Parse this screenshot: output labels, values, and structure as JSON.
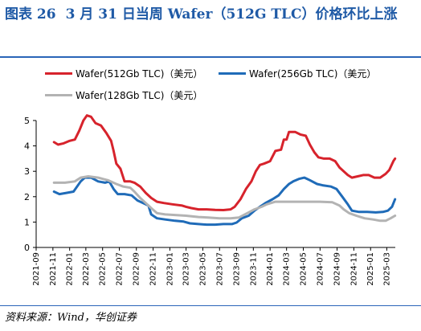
{
  "figure": {
    "label": "图表 26",
    "title": "3 月 31 日当周 Wafer（512G TLC）价格环比上涨",
    "source": "资料来源：Wind，华创证券"
  },
  "colors": {
    "title": "#1f5aa6",
    "rule": "#2a65b8"
  },
  "chart_data": {
    "type": "line",
    "title": "",
    "xlabel": "",
    "ylabel": "",
    "ylim": [
      0,
      5
    ],
    "yticks": [
      0,
      1,
      2,
      3,
      4,
      5
    ],
    "xlim": [
      "2021-09",
      "2025-04"
    ],
    "xticks": [
      "2021-09",
      "2021-11",
      "2022-01",
      "2022-03",
      "2022-05",
      "2022-07",
      "2022-09",
      "2022-11",
      "2023-01",
      "2023-03",
      "2023-05",
      "2023-07",
      "2023-09",
      "2023-11",
      "2024-01",
      "2024-03",
      "2024-05",
      "2024-07",
      "2024-09",
      "2024-11",
      "2025-01",
      "2025-03"
    ],
    "grid": false,
    "legend_position": "top",
    "series": [
      {
        "name": "Wafer(512Gb TLC)（美元）",
        "color": "#d7232c",
        "points": [
          [
            "2021-11-05",
            4.15
          ],
          [
            "2021-11-20",
            4.05
          ],
          [
            "2021-12-10",
            4.1
          ],
          [
            "2022-01-01",
            4.2
          ],
          [
            "2022-01-20",
            4.25
          ],
          [
            "2022-02-05",
            4.6
          ],
          [
            "2022-02-20",
            5.0
          ],
          [
            "2022-03-05",
            5.2
          ],
          [
            "2022-03-20",
            5.15
          ],
          [
            "2022-04-05",
            4.9
          ],
          [
            "2022-04-25",
            4.8
          ],
          [
            "2022-05-15",
            4.5
          ],
          [
            "2022-06-01",
            4.2
          ],
          [
            "2022-06-10",
            3.8
          ],
          [
            "2022-06-20",
            3.3
          ],
          [
            "2022-07-05",
            3.1
          ],
          [
            "2022-07-20",
            2.6
          ],
          [
            "2022-08-10",
            2.6
          ],
          [
            "2022-08-25",
            2.55
          ],
          [
            "2022-09-15",
            2.4
          ],
          [
            "2022-10-05",
            2.15
          ],
          [
            "2022-10-25",
            1.95
          ],
          [
            "2022-11-15",
            1.8
          ],
          [
            "2022-12-10",
            1.75
          ],
          [
            "2023-01-10",
            1.7
          ],
          [
            "2023-02-15",
            1.65
          ],
          [
            "2023-03-01",
            1.6
          ],
          [
            "2023-03-20",
            1.55
          ],
          [
            "2023-04-15",
            1.5
          ],
          [
            "2023-05-15",
            1.5
          ],
          [
            "2023-06-15",
            1.48
          ],
          [
            "2023-07-15",
            1.47
          ],
          [
            "2023-08-10",
            1.5
          ],
          [
            "2023-08-25",
            1.6
          ],
          [
            "2023-09-15",
            1.9
          ],
          [
            "2023-10-05",
            2.3
          ],
          [
            "2023-10-25",
            2.6
          ],
          [
            "2023-11-10",
            3.0
          ],
          [
            "2023-11-25",
            3.25
          ],
          [
            "2023-12-10",
            3.3
          ],
          [
            "2024-01-01",
            3.4
          ],
          [
            "2024-01-20",
            3.8
          ],
          [
            "2024-02-10",
            3.85
          ],
          [
            "2024-02-20",
            4.25
          ],
          [
            "2024-03-01",
            4.25
          ],
          [
            "2024-03-10",
            4.55
          ],
          [
            "2024-04-01",
            4.55
          ],
          [
            "2024-04-20",
            4.45
          ],
          [
            "2024-05-10",
            4.4
          ],
          [
            "2024-05-25",
            4.05
          ],
          [
            "2024-06-10",
            3.75
          ],
          [
            "2024-06-25",
            3.55
          ],
          [
            "2024-07-15",
            3.5
          ],
          [
            "2024-08-05",
            3.5
          ],
          [
            "2024-08-25",
            3.4
          ],
          [
            "2024-09-10",
            3.15
          ],
          [
            "2024-09-25",
            3.0
          ],
          [
            "2024-10-10",
            2.85
          ],
          [
            "2024-10-25",
            2.75
          ],
          [
            "2024-11-15",
            2.8
          ],
          [
            "2024-12-05",
            2.85
          ],
          [
            "2024-12-25",
            2.85
          ],
          [
            "2025-01-15",
            2.75
          ],
          [
            "2025-02-05",
            2.75
          ],
          [
            "2025-02-25",
            2.9
          ],
          [
            "2025-03-10",
            3.05
          ],
          [
            "2025-03-25",
            3.4
          ],
          [
            "2025-03-31",
            3.5
          ]
        ]
      },
      {
        "name": "Wafer(256Gb TLC)（美元）",
        "color": "#1f6bb8",
        "points": [
          [
            "2021-11-05",
            2.2
          ],
          [
            "2021-11-25",
            2.1
          ],
          [
            "2021-12-20",
            2.15
          ],
          [
            "2022-01-15",
            2.2
          ],
          [
            "2022-02-10",
            2.6
          ],
          [
            "2022-02-25",
            2.75
          ],
          [
            "2022-03-20",
            2.75
          ],
          [
            "2022-04-15",
            2.6
          ],
          [
            "2022-05-10",
            2.55
          ],
          [
            "2022-05-25",
            2.6
          ],
          [
            "2022-06-10",
            2.3
          ],
          [
            "2022-06-25",
            2.1
          ],
          [
            "2022-07-20",
            2.1
          ],
          [
            "2022-08-15",
            2.05
          ],
          [
            "2022-09-05",
            1.85
          ],
          [
            "2022-09-25",
            1.75
          ],
          [
            "2022-10-15",
            1.65
          ],
          [
            "2022-10-25",
            1.3
          ],
          [
            "2022-11-15",
            1.15
          ],
          [
            "2022-12-15",
            1.1
          ],
          [
            "2023-01-20",
            1.05
          ],
          [
            "2023-02-20",
            1.02
          ],
          [
            "2023-03-15",
            0.95
          ],
          [
            "2023-04-15",
            0.92
          ],
          [
            "2023-05-15",
            0.9
          ],
          [
            "2023-06-15",
            0.9
          ],
          [
            "2023-07-15",
            0.92
          ],
          [
            "2023-08-15",
            0.92
          ],
          [
            "2023-09-01",
            0.98
          ],
          [
            "2023-09-20",
            1.15
          ],
          [
            "2023-10-15",
            1.25
          ],
          [
            "2023-11-05",
            1.45
          ],
          [
            "2023-11-25",
            1.6
          ],
          [
            "2023-12-15",
            1.75
          ],
          [
            "2024-01-10",
            1.9
          ],
          [
            "2024-02-01",
            2.05
          ],
          [
            "2024-02-20",
            2.3
          ],
          [
            "2024-03-10",
            2.5
          ],
          [
            "2024-03-25",
            2.6
          ],
          [
            "2024-04-15",
            2.7
          ],
          [
            "2024-05-05",
            2.75
          ],
          [
            "2024-05-25",
            2.65
          ],
          [
            "2024-06-20",
            2.5
          ],
          [
            "2024-07-10",
            2.45
          ],
          [
            "2024-08-10",
            2.4
          ],
          [
            "2024-08-30",
            2.3
          ],
          [
            "2024-09-20",
            2.0
          ],
          [
            "2024-10-10",
            1.7
          ],
          [
            "2024-10-25",
            1.45
          ],
          [
            "2024-11-20",
            1.4
          ],
          [
            "2024-12-20",
            1.4
          ],
          [
            "2025-01-20",
            1.38
          ],
          [
            "2025-02-15",
            1.4
          ],
          [
            "2025-03-05",
            1.45
          ],
          [
            "2025-03-20",
            1.6
          ],
          [
            "2025-03-31",
            1.9
          ]
        ]
      },
      {
        "name": "Wafer(128Gb TLC)（美元）",
        "color": "#b3b3b3",
        "points": [
          [
            "2021-11-05",
            2.55
          ],
          [
            "2021-12-15",
            2.55
          ],
          [
            "2022-01-20",
            2.6
          ],
          [
            "2022-02-10",
            2.75
          ],
          [
            "2022-03-10",
            2.8
          ],
          [
            "2022-04-15",
            2.75
          ],
          [
            "2022-05-20",
            2.65
          ],
          [
            "2022-06-20",
            2.5
          ],
          [
            "2022-07-15",
            2.4
          ],
          [
            "2022-08-10",
            2.35
          ],
          [
            "2022-08-25",
            2.2
          ],
          [
            "2022-09-15",
            1.95
          ],
          [
            "2022-10-05",
            1.75
          ],
          [
            "2022-10-25",
            1.55
          ],
          [
            "2022-11-15",
            1.35
          ],
          [
            "2022-12-15",
            1.3
          ],
          [
            "2023-01-20",
            1.28
          ],
          [
            "2023-03-01",
            1.25
          ],
          [
            "2023-04-15",
            1.2
          ],
          [
            "2023-05-20",
            1.18
          ],
          [
            "2023-07-01",
            1.15
          ],
          [
            "2023-08-10",
            1.15
          ],
          [
            "2023-09-10",
            1.18
          ],
          [
            "2023-10-10",
            1.35
          ],
          [
            "2023-11-05",
            1.5
          ],
          [
            "2023-12-01",
            1.6
          ],
          [
            "2023-12-20",
            1.7
          ],
          [
            "2024-01-20",
            1.8
          ],
          [
            "2024-02-20",
            1.8
          ],
          [
            "2024-04-01",
            1.8
          ],
          [
            "2024-05-20",
            1.8
          ],
          [
            "2024-07-01",
            1.8
          ],
          [
            "2024-08-15",
            1.78
          ],
          [
            "2024-09-10",
            1.65
          ],
          [
            "2024-09-25",
            1.5
          ],
          [
            "2024-10-15",
            1.35
          ],
          [
            "2024-11-10",
            1.25
          ],
          [
            "2024-12-10",
            1.15
          ],
          [
            "2025-01-10",
            1.1
          ],
          [
            "2025-02-05",
            1.05
          ],
          [
            "2025-02-25",
            1.05
          ],
          [
            "2025-03-15",
            1.15
          ],
          [
            "2025-03-31",
            1.25
          ]
        ]
      }
    ]
  }
}
